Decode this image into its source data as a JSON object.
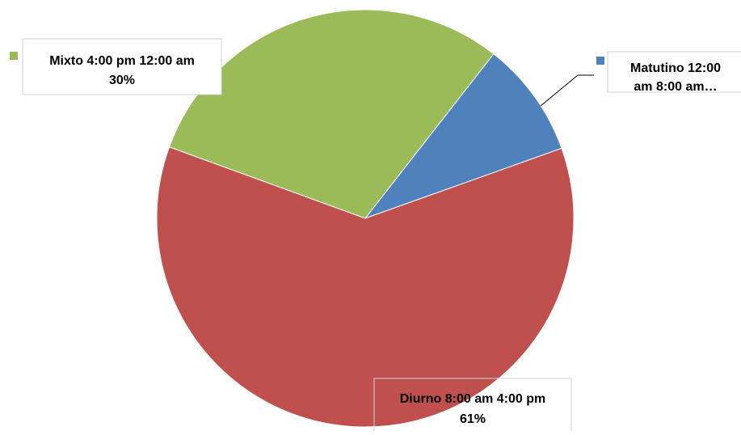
{
  "chart_data": {
    "type": "pie",
    "title": "",
    "slices": [
      {
        "label_lines": [
          "Matutino 12:00",
          "am 8:00 am…"
        ],
        "value": 9,
        "value_label": "",
        "color": "#4F81BD"
      },
      {
        "label_lines": [
          "Diurno 8:00 am 4:00 pm"
        ],
        "value": 61,
        "value_label": "61%",
        "color": "#C0504D"
      },
      {
        "label_lines": [
          "Mixto 4:00 pm 12:00 am"
        ],
        "value": 30,
        "value_label": "30%",
        "color": "#9BBB59"
      }
    ]
  }
}
